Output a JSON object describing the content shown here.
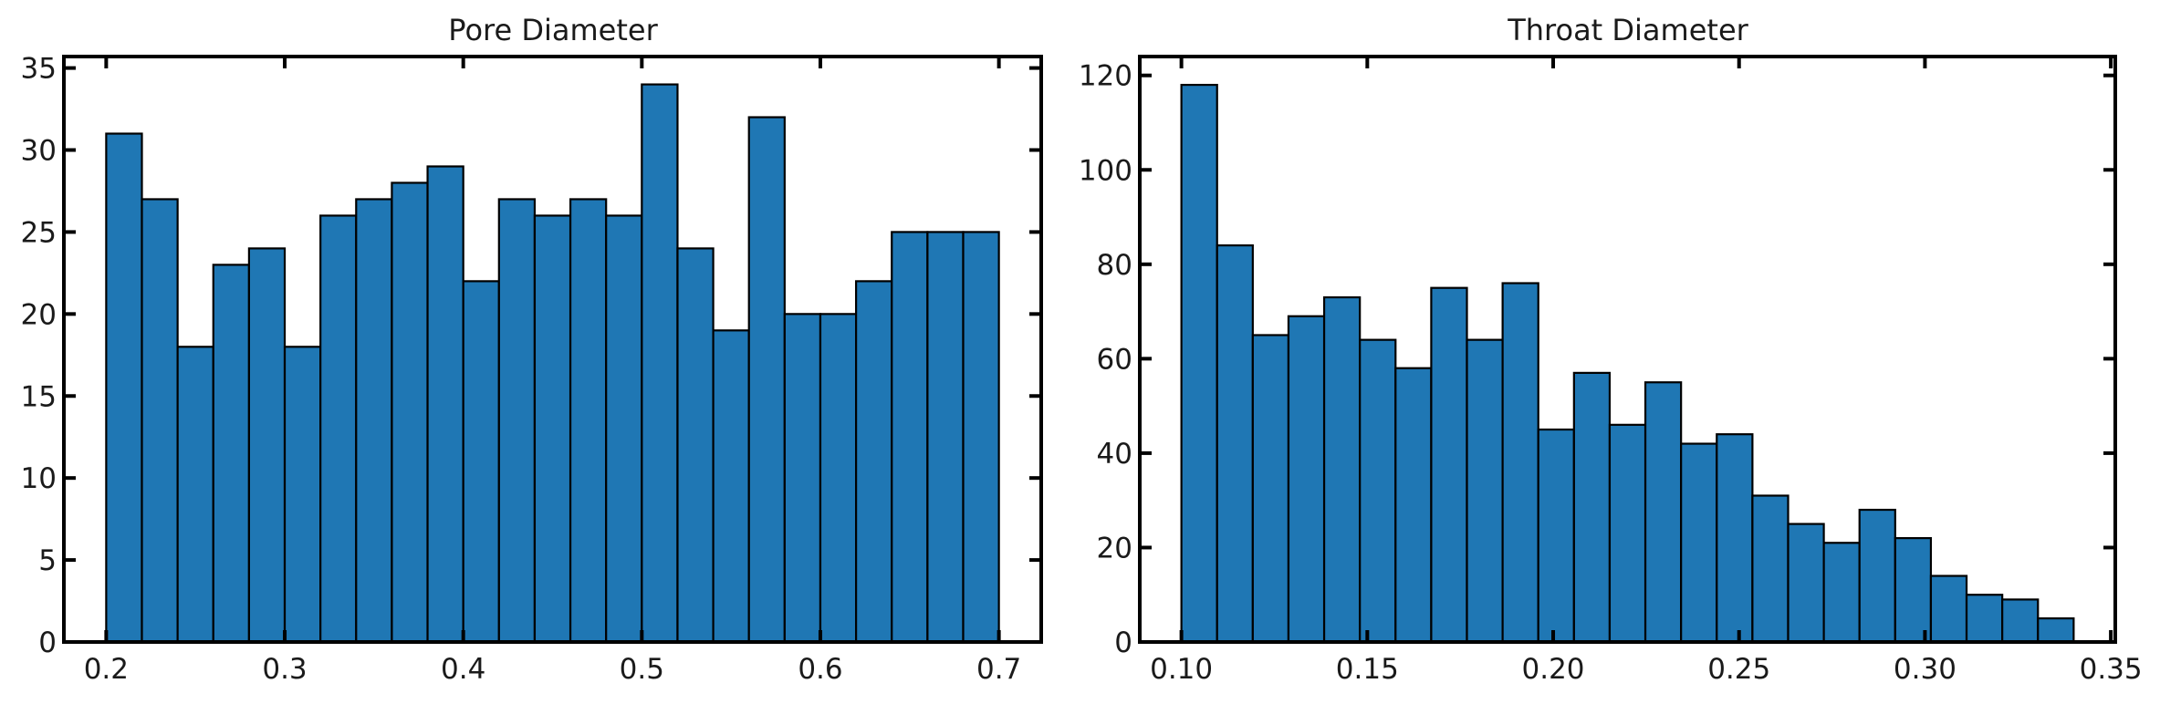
{
  "chart_data": [
    {
      "type": "bar",
      "title": "Pore Diameter",
      "xlabel": "",
      "ylabel": "",
      "xlim": [
        0.1763,
        0.7237
      ],
      "ylim": [
        0,
        35.7
      ],
      "xticks": [
        0.2,
        0.3,
        0.4,
        0.5,
        0.6,
        0.7
      ],
      "xtick_labels": [
        "0.2",
        "0.3",
        "0.4",
        "0.5",
        "0.6",
        "0.7"
      ],
      "yticks": [
        0,
        5,
        10,
        15,
        20,
        25,
        30,
        35
      ],
      "ytick_labels": [
        "0",
        "5",
        "10",
        "15",
        "20",
        "25",
        "30",
        "35"
      ],
      "bin_edges": [
        0.2,
        0.22,
        0.24,
        0.26,
        0.28,
        0.3,
        0.32,
        0.34,
        0.36,
        0.38,
        0.4,
        0.42,
        0.44,
        0.46,
        0.48,
        0.5,
        0.52,
        0.54,
        0.56,
        0.58,
        0.6,
        0.62,
        0.64,
        0.66,
        0.68,
        0.7
      ],
      "values": [
        31,
        27,
        18,
        23,
        24,
        18,
        26,
        27,
        28,
        29,
        22,
        27,
        26,
        27,
        26,
        34,
        24,
        19,
        32,
        20,
        20,
        22,
        25,
        25,
        25
      ],
      "bar_color": "#1f77b4",
      "edge_color": "#000000",
      "grid": false,
      "tick_direction": "in",
      "ticks_mirrored": true
    },
    {
      "type": "bar",
      "title": "Throat Diameter",
      "xlabel": "",
      "ylabel": "",
      "xlim": [
        0.0888,
        0.3512
      ],
      "ylim": [
        0,
        124
      ],
      "xticks": [
        0.1,
        0.15,
        0.2,
        0.25,
        0.3,
        0.35
      ],
      "xtick_labels": [
        "0.10",
        "0.15",
        "0.20",
        "0.25",
        "0.30",
        "0.35"
      ],
      "yticks": [
        0,
        20,
        40,
        60,
        80,
        100,
        120
      ],
      "ytick_labels": [
        "0",
        "20",
        "40",
        "60",
        "80",
        "100",
        "120"
      ],
      "bin_edges": [
        0.1,
        0.1096,
        0.1192,
        0.1288,
        0.1384,
        0.148,
        0.1576,
        0.1672,
        0.1768,
        0.1864,
        0.196,
        0.2056,
        0.2152,
        0.2248,
        0.2344,
        0.244,
        0.2536,
        0.2632,
        0.2728,
        0.2824,
        0.292,
        0.3016,
        0.3112,
        0.3208,
        0.3304,
        0.34
      ],
      "values": [
        118,
        84,
        65,
        69,
        73,
        64,
        58,
        75,
        64,
        76,
        45,
        57,
        46,
        55,
        42,
        44,
        31,
        25,
        21,
        28,
        22,
        14,
        10,
        9,
        5
      ],
      "bar_color": "#1f77b4",
      "edge_color": "#000000",
      "grid": false,
      "tick_direction": "in",
      "ticks_mirrored": true
    }
  ]
}
